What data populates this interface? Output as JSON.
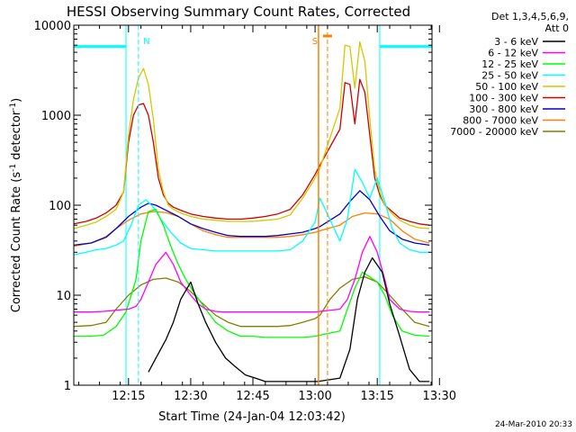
{
  "chart_data": {
    "type": "line",
    "title": "HESSI Observing Summary Count Rates, Corrected",
    "xlabel": "Start Time (24-Jan-04 12:03:42)",
    "ylabel_main": "Corrected Count Rate (s",
    "ylabel_exp1": "-1",
    "ylabel_mid": " detector",
    "ylabel_exp2": "-1",
    "ylabel_end": ")",
    "yscale": "log",
    "ylim": [
      1,
      10000
    ],
    "xlim": [
      12.03,
      13.47
    ],
    "x_tick_values": [
      12.25,
      12.5,
      12.75,
      13.0,
      13.25,
      13.5
    ],
    "x_tick_labels": [
      "12:15",
      "12:30",
      "12:45",
      "13:00",
      "13:15",
      "13:30"
    ],
    "y_tick_values": [
      1,
      10,
      100,
      1000,
      10000
    ],
    "y_tick_labels": [
      "1",
      "10",
      "100",
      "1000",
      "10000"
    ],
    "legend_title_1": "Det 1,3,4,5,6,9,",
    "legend_title_2": "Att 0",
    "timestamp": "24-Mar-2010 20:33",
    "markers": [
      {
        "label": "N",
        "x": 12.29,
        "color": "#00ffff",
        "style": "dashed"
      },
      {
        "label": "S",
        "x": 13.05,
        "color": "#ff7f00",
        "style": "dashed"
      }
    ],
    "saa_intervals": [
      {
        "x0": 12.03,
        "x1": 12.24,
        "color": "#00ffff",
        "level": 5800
      },
      {
        "x0": 13.26,
        "x1": 13.47,
        "color": "#00ffff",
        "level": 5800
      }
    ],
    "series": [
      {
        "name": "3 - 6 keV",
        "color": "#000000",
        "x": [
          12.33,
          12.36,
          12.4,
          12.43,
          12.46,
          12.5,
          12.53,
          12.56,
          12.6,
          12.64,
          12.68,
          12.72,
          12.76,
          12.8,
          12.84,
          12.88,
          12.92,
          12.96,
          13.01,
          13.1,
          13.14,
          13.17,
          13.2,
          13.23,
          13.27,
          13.3,
          13.34,
          13.38,
          13.42,
          13.46
        ],
        "y": [
          1.4,
          2,
          3.2,
          5,
          9,
          14,
          8,
          5,
          3,
          2,
          1.6,
          1.3,
          1.2,
          1.1,
          1.1,
          1.1,
          1.1,
          1.1,
          1.1,
          1.2,
          2.5,
          9,
          18,
          26,
          18,
          8,
          3.5,
          1.5,
          1.1,
          1.1
        ]
      },
      {
        "name": "6 - 12 keV",
        "color": "#ff00ff",
        "x": [
          12.03,
          12.1,
          12.15,
          12.2,
          12.25,
          12.28,
          12.3,
          12.33,
          12.36,
          12.4,
          12.43,
          12.46,
          12.5,
          12.53,
          12.56,
          12.6,
          12.63,
          12.66,
          12.7,
          12.75,
          12.8,
          12.85,
          12.9,
          12.95,
          13.0,
          13.1,
          13.13,
          13.16,
          13.19,
          13.22,
          13.25,
          13.28,
          13.3,
          13.34,
          13.38,
          13.42,
          13.46
        ],
        "y": [
          6.5,
          6.5,
          6.6,
          6.8,
          7,
          7.5,
          9,
          14,
          22,
          30,
          22,
          14,
          10,
          8,
          7,
          6.6,
          6.5,
          6.5,
          6.5,
          6.5,
          6.5,
          6.5,
          6.5,
          6.5,
          6.5,
          7,
          9,
          15,
          30,
          45,
          30,
          15,
          9,
          7,
          6.6,
          6.5,
          6.5
        ]
      },
      {
        "name": "12 - 25 keV",
        "color": "#00ff00",
        "x": [
          12.03,
          12.1,
          12.15,
          12.2,
          12.24,
          12.28,
          12.3,
          12.33,
          12.36,
          12.39,
          12.42,
          12.45,
          12.48,
          12.52,
          12.56,
          12.6,
          12.65,
          12.7,
          12.75,
          12.8,
          12.85,
          12.9,
          12.95,
          13.0,
          13.1,
          13.13,
          13.16,
          13.19,
          13.22,
          13.25,
          13.28,
          13.31,
          13.35,
          13.4,
          13.46
        ],
        "y": [
          3.5,
          3.5,
          3.6,
          4.5,
          6.5,
          15,
          40,
          85,
          90,
          60,
          35,
          22,
          15,
          10,
          7,
          5,
          4,
          3.5,
          3.5,
          3.4,
          3.4,
          3.4,
          3.4,
          3.5,
          4,
          7,
          12,
          18,
          16,
          14,
          10,
          6,
          4,
          3.6,
          3.5
        ]
      },
      {
        "name": "25 - 50 keV",
        "color": "#00ffff",
        "x": [
          12.03,
          12.08,
          12.12,
          12.16,
          12.2,
          12.23,
          12.26,
          12.29,
          12.32,
          12.35,
          12.38,
          12.42,
          12.46,
          12.5,
          12.55,
          12.6,
          12.65,
          12.7,
          12.75,
          12.8,
          12.85,
          12.9,
          12.95,
          13.0,
          13.02,
          13.1,
          13.13,
          13.16,
          13.19,
          13.22,
          13.25,
          13.28,
          13.31,
          13.34,
          13.38,
          13.42,
          13.46
        ],
        "y": [
          28,
          30,
          32,
          33,
          36,
          40,
          60,
          100,
          115,
          95,
          70,
          50,
          38,
          33,
          32,
          31,
          31,
          31,
          31,
          31,
          31,
          32,
          40,
          65,
          120,
          40,
          70,
          250,
          180,
          120,
          200,
          110,
          55,
          38,
          32,
          30,
          30
        ]
      },
      {
        "name": "50 - 100 keV",
        "color": "#d4c800",
        "x": [
          12.03,
          12.08,
          12.12,
          12.16,
          12.2,
          12.23,
          12.25,
          12.27,
          12.29,
          12.31,
          12.33,
          12.35,
          12.37,
          12.39,
          12.41,
          12.43,
          12.46,
          12.5,
          12.55,
          12.6,
          12.65,
          12.7,
          12.75,
          12.8,
          12.85,
          12.9,
          12.95,
          13.0,
          13.02,
          13.1,
          13.12,
          13.14,
          13.16,
          13.18,
          13.2,
          13.22,
          13.24,
          13.26,
          13.28,
          13.31,
          13.34,
          13.38,
          13.42,
          13.46
        ],
        "y": [
          55,
          60,
          65,
          75,
          90,
          140,
          600,
          1500,
          2600,
          3300,
          2200,
          900,
          250,
          140,
          100,
          90,
          82,
          75,
          70,
          68,
          66,
          66,
          66,
          68,
          70,
          78,
          120,
          200,
          260,
          1200,
          6000,
          5800,
          2000,
          6500,
          4000,
          900,
          250,
          140,
          100,
          80,
          68,
          60,
          56,
          55
        ]
      },
      {
        "name": "100 - 300 keV",
        "color": "#cc0000",
        "x": [
          12.03,
          12.08,
          12.12,
          12.16,
          12.2,
          12.23,
          12.25,
          12.27,
          12.29,
          12.31,
          12.33,
          12.35,
          12.37,
          12.39,
          12.41,
          12.43,
          12.46,
          12.5,
          12.55,
          12.6,
          12.65,
          12.7,
          12.75,
          12.8,
          12.85,
          12.9,
          12.95,
          13.0,
          13.02,
          13.1,
          13.12,
          13.14,
          13.16,
          13.18,
          13.2,
          13.22,
          13.24,
          13.26,
          13.28,
          13.31,
          13.34,
          13.38,
          13.42,
          13.46
        ],
        "y": [
          62,
          66,
          72,
          82,
          100,
          140,
          500,
          1000,
          1300,
          1350,
          1000,
          500,
          200,
          130,
          105,
          95,
          88,
          80,
          75,
          72,
          70,
          70,
          72,
          75,
          80,
          90,
          130,
          220,
          280,
          700,
          2300,
          2200,
          800,
          2500,
          1800,
          600,
          200,
          130,
          100,
          85,
          72,
          66,
          62,
          60
        ]
      },
      {
        "name": "300 - 800 keV",
        "color": "#0000cc",
        "x": [
          12.03,
          12.1,
          12.16,
          12.2,
          12.25,
          12.3,
          12.33,
          12.36,
          12.4,
          12.45,
          12.5,
          12.55,
          12.6,
          12.65,
          12.7,
          12.75,
          12.8,
          12.85,
          12.9,
          12.95,
          13.0,
          13.02,
          13.1,
          13.14,
          13.18,
          13.22,
          13.26,
          13.3,
          13.35,
          13.4,
          13.46
        ],
        "y": [
          36,
          38,
          44,
          55,
          75,
          95,
          105,
          100,
          88,
          75,
          62,
          55,
          50,
          46,
          45,
          45,
          45,
          46,
          48,
          50,
          55,
          58,
          80,
          110,
          145,
          115,
          75,
          52,
          42,
          38,
          36
        ]
      },
      {
        "name": "800 - 7000 keV",
        "color": "#ff7f00",
        "x": [
          12.03,
          12.1,
          12.16,
          12.2,
          12.25,
          12.3,
          12.35,
          12.4,
          12.45,
          12.5,
          12.55,
          12.6,
          12.65,
          12.7,
          12.75,
          12.8,
          12.85,
          12.9,
          12.95,
          13.0,
          13.02,
          13.1,
          13.15,
          13.2,
          13.25,
          13.3,
          13.35,
          13.4,
          13.46
        ],
        "y": [
          35,
          38,
          45,
          55,
          68,
          80,
          85,
          83,
          75,
          62,
          52,
          47,
          44,
          44,
          44,
          44,
          44,
          45,
          47,
          50,
          52,
          60,
          75,
          82,
          80,
          70,
          52,
          42,
          38
        ]
      },
      {
        "name": "7000 - 20000 keV",
        "color": "#808000",
        "x": [
          12.03,
          12.1,
          12.16,
          12.2,
          12.25,
          12.3,
          12.35,
          12.4,
          12.45,
          12.5,
          12.55,
          12.6,
          12.65,
          12.7,
          12.75,
          12.8,
          12.85,
          12.9,
          12.95,
          13.0,
          13.02,
          13.06,
          13.1,
          13.15,
          13.2,
          13.25,
          13.3,
          13.35,
          13.4,
          13.46
        ],
        "y": [
          4.5,
          4.6,
          5,
          7,
          10,
          13,
          15,
          15.5,
          14,
          11,
          8,
          6,
          5,
          4.5,
          4.5,
          4.5,
          4.5,
          4.6,
          5,
          5.5,
          6,
          9,
          12,
          15,
          16,
          14,
          10,
          7,
          5,
          4.5
        ]
      }
    ]
  }
}
